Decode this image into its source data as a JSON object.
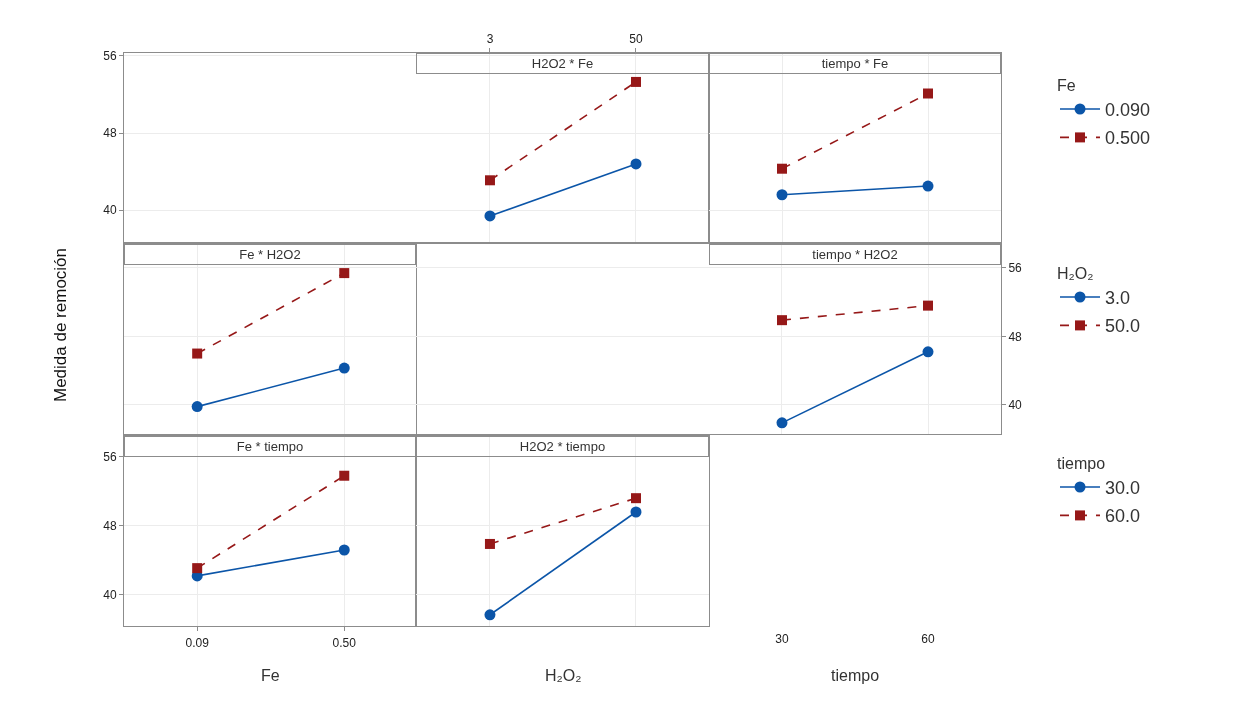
{
  "chart_data": [
    {
      "type": "line",
      "title": "H2O2 * Fe",
      "x": [
        3,
        50
      ],
      "xlim": [
        -114.8,
        73.5
      ],
      "xticks": [
        3,
        50
      ],
      "ylim": [
        36.7,
        56.3
      ],
      "yticks": [
        40,
        48,
        56
      ],
      "grid": true,
      "legend": "right",
      "legend_title": "Fe",
      "series": [
        {
          "name": "0.090",
          "color": "#0b55a8",
          "marker": "circle",
          "line_style": "solid",
          "values": [
            39.4,
            44.8
          ]
        },
        {
          "name": "0.500",
          "color": "#961818",
          "marker": "square",
          "line_style": "dashed",
          "values": [
            43.1,
            53.3
          ]
        }
      ]
    },
    {
      "type": "line",
      "title": "tiempo * Fe",
      "x": [
        30,
        60
      ],
      "xlim": [
        15,
        75
      ],
      "xticks": [
        30,
        60
      ],
      "ylim": [
        36.7,
        56.3
      ],
      "yticks": [
        40,
        48,
        56
      ],
      "grid": true,
      "tick_labels": false,
      "legend": "right",
      "series": [
        {
          "name": "0.090",
          "color": "#0b55a8",
          "marker": "circle",
          "line_style": "solid",
          "values": [
            41.6,
            42.5
          ]
        },
        {
          "name": "0.500",
          "color": "#961818",
          "marker": "square",
          "line_style": "dashed",
          "values": [
            44.3,
            52.1
          ]
        }
      ]
    },
    {
      "type": "line",
      "title": "Fe * H2O2",
      "ylabel": "Medida de remoción",
      "x": [
        0.09,
        0.5
      ],
      "xlim": [
        -0.114,
        0.7
      ],
      "xticks": [
        0.09,
        0.5
      ],
      "ylim": [
        36.6,
        58.8
      ],
      "yticks": [
        40,
        48,
        56
      ],
      "grid": true,
      "tick_labels": false,
      "legend": "right",
      "legend_title": "H₂O₂",
      "series": [
        {
          "name": "3.0",
          "color": "#0b55a8",
          "marker": "circle",
          "line_style": "solid",
          "values": [
            39.8,
            44.3
          ]
        },
        {
          "name": "50.0",
          "color": "#961818",
          "marker": "square",
          "line_style": "dashed",
          "values": [
            46.0,
            55.4
          ]
        }
      ]
    },
    {
      "type": "line",
      "title": "tiempo * H2O2",
      "xlabel": "tiempo",
      "x": [
        30,
        60
      ],
      "xlim": [
        -45.2,
        75
      ],
      "xticks": [
        30,
        60
      ],
      "y2lim": [
        36.6,
        58.8
      ],
      "y2ticks": [
        40,
        48,
        56
      ],
      "grid": true,
      "legend": "right",
      "series": [
        {
          "name": "3.0",
          "color": "#0b55a8",
          "marker": "circle",
          "line_style": "solid",
          "axis": "y2",
          "values": [
            37.9,
            46.2
          ]
        },
        {
          "name": "50.0",
          "color": "#961818",
          "marker": "square",
          "line_style": "dashed",
          "axis": "y2",
          "values": [
            49.9,
            51.6
          ]
        }
      ]
    },
    {
      "type": "line",
      "title": "Fe * tiempo",
      "xlabel": "Fe",
      "x": [
        0.09,
        0.5
      ],
      "xlim": [
        -0.114,
        0.7
      ],
      "xticks": [
        0.09,
        {
          "value": 0.5,
          "label": "0.50"
        }
      ],
      "ylim": [
        36.4,
        58.4
      ],
      "yticks": [
        40,
        48,
        56
      ],
      "grid": true,
      "legend": "right",
      "legend_title": "tiempo",
      "series": [
        {
          "name": "30.0",
          "color": "#0b55a8",
          "marker": "circle",
          "line_style": "solid",
          "values": [
            42.2,
            45.2
          ]
        },
        {
          "name": "60.0",
          "color": "#961818",
          "marker": "square",
          "line_style": "dashed",
          "values": [
            43.1,
            53.8
          ]
        }
      ]
    },
    {
      "type": "line",
      "title": "H2O2 * tiempo",
      "xlabel": "H₂O₂",
      "x": [
        3,
        50
      ],
      "xlim": [
        -20.8,
        73.5
      ],
      "xticks": [
        3,
        50
      ],
      "ylim": [
        36.4,
        58.4
      ],
      "yticks": [
        40,
        48,
        56
      ],
      "grid": true,
      "tick_labels": false,
      "legend": "right",
      "series": [
        {
          "name": "30.0",
          "color": "#0b55a8",
          "marker": "circle",
          "line_style": "solid",
          "values": [
            37.7,
            49.6
          ]
        },
        {
          "name": "60.0",
          "color": "#961818",
          "marker": "square",
          "line_style": "dashed",
          "values": [
            45.9,
            51.2
          ]
        }
      ]
    }
  ]
}
